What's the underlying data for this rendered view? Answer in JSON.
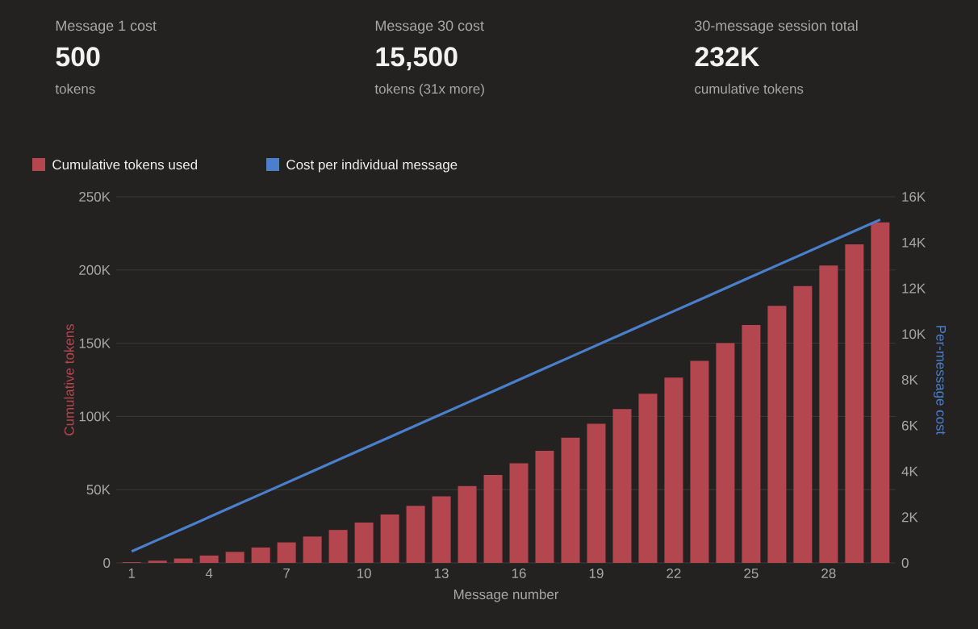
{
  "chart_data": {
    "type": "bar",
    "annotations": [
      "Message 1 cost",
      "500",
      "tokens",
      "Message 30 cost",
      "15,500",
      "tokens (31x more)",
      "30-message session total",
      "232K",
      "cumulative tokens"
    ],
    "xlabel": "Message number",
    "ylabel": "Cumulative tokens",
    "y2label": "Per-message cost",
    "categories": [
      "1",
      null,
      null,
      "4",
      null,
      null,
      "7",
      null,
      null,
      "10",
      null,
      null,
      "13",
      null,
      null,
      "16",
      null,
      null,
      "19",
      null,
      null,
      "22",
      null,
      null,
      "25",
      null,
      null,
      "28",
      null,
      null
    ],
    "series": [
      {
        "name": "Cumulative tokens used",
        "color": "#b4464f",
        "values": [
          500,
          1500,
          3000,
          5000,
          7500,
          10500,
          14000,
          18000,
          22500,
          27500,
          33000,
          39000,
          45500,
          52500,
          60000,
          68000,
          76500,
          85500,
          95000,
          105000,
          115500,
          126500,
          138000,
          150000,
          162500,
          175500,
          189000,
          203000,
          217500,
          232500
        ]
      },
      {
        "name": "Cost per individual message",
        "type": "line",
        "axis": "y2",
        "color": "#4a7fcc",
        "values": [
          500,
          1000,
          1500,
          2000,
          2500,
          3000,
          3500,
          4000,
          4500,
          5000,
          5500,
          6000,
          6500,
          7000,
          7500,
          8000,
          8500,
          9000,
          9500,
          10000,
          10500,
          11000,
          11500,
          12000,
          12500,
          13000,
          13500,
          14000,
          14500,
          15000
        ]
      }
    ],
    "ylim": [
      0,
      250000
    ],
    "yticks": [
      0,
      {
        "value": 50000,
        "label": "50K"
      },
      {
        "value": 100000,
        "label": "100K"
      },
      {
        "value": 150000,
        "label": "150K"
      },
      {
        "value": 200000,
        "label": "200K"
      },
      {
        "value": 250000,
        "label": "250K"
      }
    ],
    "y2lim": [
      0,
      16000
    ],
    "y2ticks": [
      0,
      {
        "value": 2000,
        "label": "2K"
      },
      {
        "value": 4000,
        "label": "4K"
      },
      {
        "value": 6000,
        "label": "6K"
      },
      {
        "value": 8000,
        "label": "8K"
      },
      {
        "value": 10000,
        "label": "10K"
      },
      {
        "value": 12000,
        "label": "12K"
      },
      {
        "value": 14000,
        "label": "14K"
      },
      {
        "value": 16000,
        "label": "16K"
      }
    ],
    "grid": "y",
    "legend": "top left",
    "marker": "none",
    "line_style": "solid"
  }
}
